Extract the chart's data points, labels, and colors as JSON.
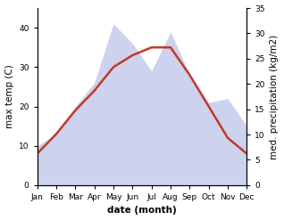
{
  "months": [
    "Jan",
    "Feb",
    "Mar",
    "Apr",
    "May",
    "Jun",
    "Jul",
    "Aug",
    "Sep",
    "Oct",
    "Nov",
    "Dec"
  ],
  "month_indices": [
    0,
    1,
    2,
    3,
    4,
    5,
    6,
    7,
    8,
    9,
    10,
    11
  ],
  "temp_max": [
    8,
    13,
    19,
    24,
    30,
    33,
    35,
    35,
    28,
    20,
    12,
    8
  ],
  "precipitation": [
    10,
    13,
    20,
    26,
    41,
    36,
    29,
    39,
    28,
    21,
    22,
    15
  ],
  "temp_color": "#c0392b",
  "precip_fill_color": "#b8c0e8",
  "temp_ylim": [
    0,
    45
  ],
  "precip_ylim": [
    0,
    35
  ],
  "temp_yticks": [
    0,
    10,
    20,
    30,
    40
  ],
  "precip_yticks": [
    0,
    5,
    10,
    15,
    20,
    25,
    30,
    35
  ],
  "xlabel": "date (month)",
  "ylabel_left": "max temp (C)",
  "ylabel_right": "med. precipitation (kg/m2)",
  "label_fontsize": 7.5,
  "tick_fontsize": 6.5,
  "line_width": 1.8
}
